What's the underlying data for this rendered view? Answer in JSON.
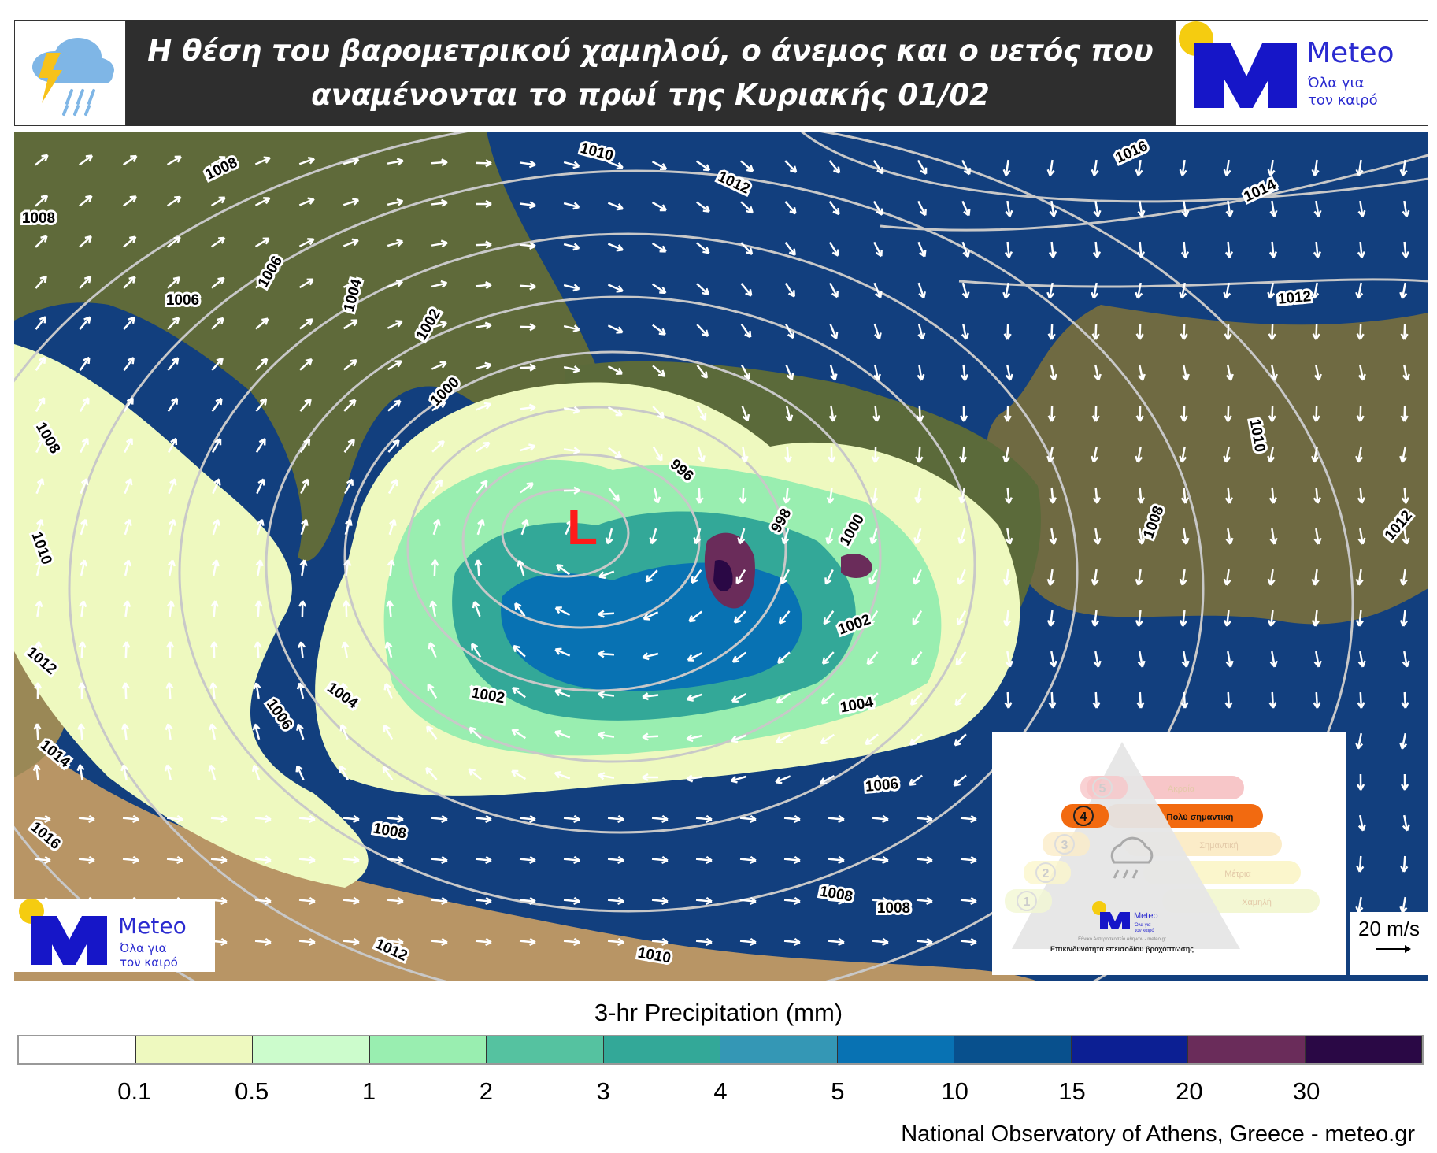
{
  "header": {
    "title_line1": "Η θέση του βαρομετρικού χαμηλού, ο άνεμος και ο υετός που",
    "title_line2": "αναμένονται το πρωί της Κυριακής 01/02",
    "logo": {
      "name": "Meteo",
      "tagline_1": "Όλα για",
      "tagline_2": "τον καιρό"
    }
  },
  "map": {
    "low_label": "L",
    "isobar_labels": [
      "1008",
      "1008",
      "1006",
      "1006",
      "1004",
      "1002",
      "1000",
      "996",
      "998",
      "1000",
      "1002",
      "1004",
      "1002",
      "1004",
      "1006",
      "1008",
      "1006",
      "1008",
      "1008",
      "1010",
      "1012",
      "1010",
      "1012",
      "1016",
      "1014",
      "1012",
      "1010",
      "1012",
      "1008",
      "1008",
      "1010",
      "1012",
      "1014",
      "1016"
    ],
    "colors": {
      "sea": "#0f3a78",
      "land": "#7a6a45",
      "isobar": "#c8c8c8",
      "wind_arrow": "#ffffff",
      "low": "#ff1a1a"
    }
  },
  "risk_pyramid": {
    "title": "Επικινδυνότητα επεισοδίου βροχόπτωσης",
    "credit": "Εθνικό Αστεροσκοπείο Αθηνών - meteo.gr",
    "logo": {
      "name": "Meteo",
      "tagline_1": "Όλα για",
      "tagline_2": "τον καιρό"
    },
    "active_level": 4,
    "levels": [
      {
        "number": "5",
        "label": "Ακραία",
        "color": "#f7c6c8"
      },
      {
        "number": "4",
        "label": "Πολύ σημαντική",
        "color": "#f26a10"
      },
      {
        "number": "3",
        "label": "Σημαντική",
        "color": "#fbecc8"
      },
      {
        "number": "2",
        "label": "Μέτρια",
        "color": "#fbf6cc"
      },
      {
        "number": "1",
        "label": "Χαμηλή",
        "color": "#f3f7d3"
      }
    ]
  },
  "wind_scale": {
    "label": "20 m/s"
  },
  "bottom_logo": {
    "name": "Meteo",
    "tagline_1": "Όλα για",
    "tagline_2": "τον καιρό"
  },
  "legend": {
    "title": "3-hr Precipitation (mm)",
    "colors": [
      "#ffffff",
      "#eef9bf",
      "#ccfccc",
      "#99eeb0",
      "#55c2a0",
      "#33a898",
      "#3497b5",
      "#0872b3",
      "#08508d",
      "#0c1f93",
      "#6a2c5a",
      "#2a0845"
    ],
    "ticks": [
      "0.1",
      "0.5",
      "1",
      "2",
      "3",
      "4",
      "5",
      "10",
      "15",
      "20",
      "30"
    ]
  },
  "footer": "National Observatory of Athens, Greece - meteo.gr"
}
